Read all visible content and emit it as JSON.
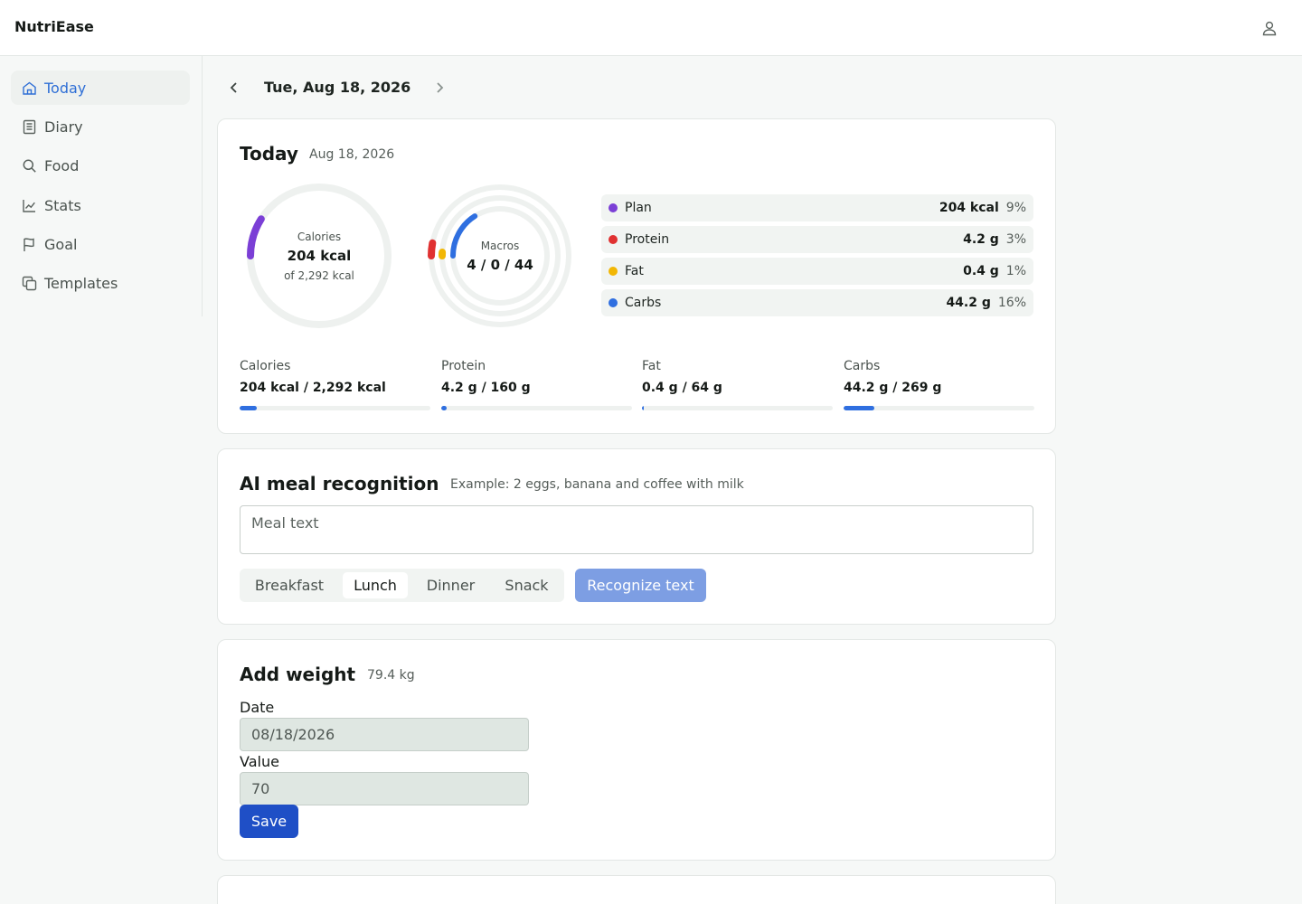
{
  "app": {
    "brand": "NutriEase",
    "user_icon": "user-icon"
  },
  "sidebar": {
    "items": [
      {
        "label": "Today",
        "icon": "home-icon",
        "active": true
      },
      {
        "label": "Diary",
        "icon": "book-icon"
      },
      {
        "label": "Food",
        "icon": "search-icon"
      },
      {
        "label": "Stats",
        "icon": "chart-icon"
      },
      {
        "label": "Goal",
        "icon": "flag-icon"
      },
      {
        "label": "Templates",
        "icon": "copy-icon"
      }
    ]
  },
  "datebar": {
    "date": "Tue, Aug 18, 2026"
  },
  "today": {
    "title": "Today",
    "date": "Aug 18, 2026",
    "calories_ring": {
      "label": "Calories",
      "value": "204 kcal",
      "of": "of 2,292 kcal",
      "fraction": 0.09
    },
    "macros_ring": {
      "label": "Macros",
      "value": "4 / 0 / 44",
      "fractions": {
        "carbs": 0.16,
        "fat": 0.01,
        "protein": 0.03
      }
    },
    "legend": [
      {
        "name": "Plan",
        "value": "204 kcal",
        "pct": "9%",
        "color": "#7b3fd6"
      },
      {
        "name": "Protein",
        "value": "4.2 g",
        "pct": "3%",
        "color": "#e03131"
      },
      {
        "name": "Fat",
        "value": "0.4 g",
        "pct": "1%",
        "color": "#f2b705"
      },
      {
        "name": "Carbs",
        "value": "44.2 g",
        "pct": "16%",
        "color": "#2f6fe0"
      }
    ],
    "stats": [
      {
        "label": "Calories",
        "value": "204 kcal / 2,292 kcal",
        "fraction": 0.09
      },
      {
        "label": "Protein",
        "value": "4.2 g / 160 g",
        "fraction": 0.03
      },
      {
        "label": "Fat",
        "value": "0.4 g / 64 g",
        "fraction": 0.01
      },
      {
        "label": "Carbs",
        "value": "44.2 g / 269 g",
        "fraction": 0.16
      }
    ]
  },
  "ai": {
    "title": "AI meal recognition",
    "example": "Example: 2 eggs, banana and coffee with milk",
    "placeholder": "Meal text",
    "meals": [
      "Breakfast",
      "Lunch",
      "Dinner",
      "Snack"
    ],
    "selected_meal": "Lunch",
    "recognize_label": "Recognize text"
  },
  "weight": {
    "title": "Add weight",
    "current": "79.4 kg",
    "date_label": "Date",
    "date_value": "08/18/2026",
    "value_label": "Value",
    "value_value": "70",
    "save_label": "Save"
  },
  "colors": {
    "accent": "#2f6fe0",
    "plan": "#7b3fd6",
    "protein": "#e03131",
    "fat": "#f2b705",
    "carbs": "#2f6fe0"
  }
}
